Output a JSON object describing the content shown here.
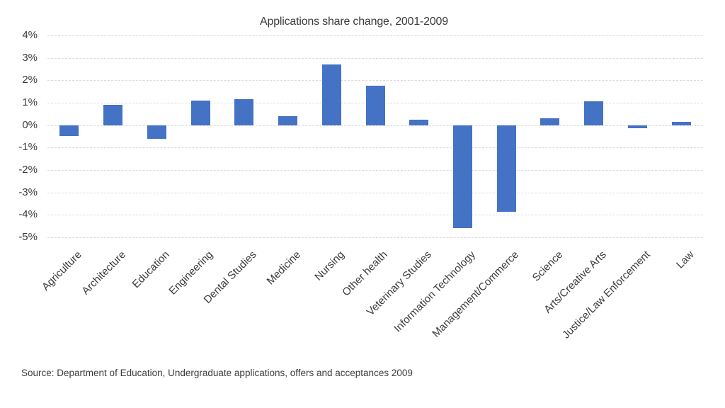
{
  "page": {
    "background": "#ffffff"
  },
  "chart_data": {
    "type": "bar",
    "title": "Applications share change, 2001-2009",
    "categories": [
      "Agriculture",
      "Architecture",
      "Education",
      "Engineering",
      "Dental Studies",
      "Medicine",
      "Nursing",
      "Other health",
      "Veterinary Studies",
      "Information Technology",
      "Management/Commerce",
      "Science",
      "Arts/Creative Arts",
      "Justice/Law Enforcement",
      "Law"
    ],
    "values": [
      -0.5,
      0.9,
      -0.6,
      1.1,
      1.15,
      0.4,
      2.7,
      1.75,
      0.25,
      -4.6,
      -3.85,
      0.3,
      1.05,
      -0.15,
      0.15
    ],
    "unit": "%",
    "xlabel": "",
    "ylabel": "",
    "ylim": [
      -5,
      4
    ],
    "ytick_step": 1,
    "y_tick_labels": [
      "4%",
      "3%",
      "2%",
      "1%",
      "0%",
      "-1%",
      "-2%",
      "-3%",
      "-4%",
      "-5%"
    ],
    "grid": true,
    "legend": "none",
    "bar_color": "#4472C4",
    "axis_text_color": "#3b3b3b",
    "source": "Source: Department of Education, Undergraduate applications, offers and acceptances 2009"
  }
}
